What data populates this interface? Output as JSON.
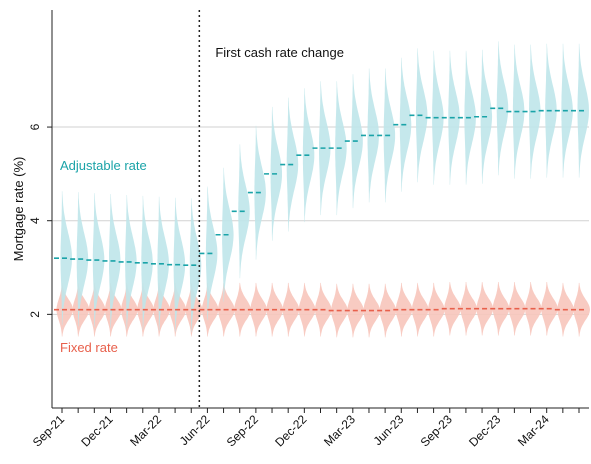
{
  "chart_data": {
    "type": "line",
    "ylabel": "Mortgage rate (%)",
    "yticks": [
      2,
      4,
      6
    ],
    "ylim": [
      0,
      8.5
    ],
    "grid": true,
    "xlabels": [
      "Sep-21",
      "Dec-21",
      "Mar-22",
      "Jun-22",
      "Sep-22",
      "Dec-22",
      "Mar-23",
      "Jun-23",
      "Sep-23",
      "Dec-23",
      "Mar-24"
    ],
    "months": [
      "Sep-21",
      "Oct-21",
      "Nov-21",
      "Dec-21",
      "Jan-22",
      "Feb-22",
      "Mar-22",
      "Apr-22",
      "May-22",
      "Jun-22",
      "Jul-22",
      "Aug-22",
      "Sep-22",
      "Oct-22",
      "Nov-22",
      "Dec-22",
      "Jan-23",
      "Feb-23",
      "Mar-23",
      "Apr-23",
      "May-23",
      "Jun-23",
      "Jul-23",
      "Aug-23",
      "Sep-23",
      "Oct-23",
      "Nov-23",
      "Dec-23",
      "Jan-24",
      "Feb-24",
      "Mar-24",
      "Apr-24",
      "May-24"
    ],
    "vline": {
      "at": "May-22",
      "label": "First cash rate change"
    },
    "series": [
      {
        "name": "Adjustable rate",
        "color": "#1aa3a8",
        "fill": "#bfe6ea",
        "values": [
          3.2,
          3.18,
          3.16,
          3.14,
          3.12,
          3.1,
          3.08,
          3.06,
          3.05,
          3.3,
          3.7,
          4.2,
          4.6,
          5.0,
          5.2,
          5.4,
          5.55,
          5.55,
          5.7,
          5.82,
          5.82,
          6.05,
          6.25,
          6.2,
          6.2,
          6.2,
          6.22,
          6.4,
          6.33,
          6.33,
          6.35,
          6.35,
          6.35
        ]
      },
      {
        "name": "Fixed rate",
        "color": "#e8604c",
        "fill": "#f7c5bb",
        "values": [
          2.1,
          2.1,
          2.1,
          2.1,
          2.1,
          2.1,
          2.1,
          2.1,
          2.1,
          2.1,
          2.1,
          2.1,
          2.1,
          2.1,
          2.1,
          2.1,
          2.1,
          2.08,
          2.08,
          2.08,
          2.08,
          2.1,
          2.1,
          2.1,
          2.12,
          2.12,
          2.12,
          2.12,
          2.12,
          2.12,
          2.12,
          2.1,
          2.1
        ]
      }
    ]
  }
}
